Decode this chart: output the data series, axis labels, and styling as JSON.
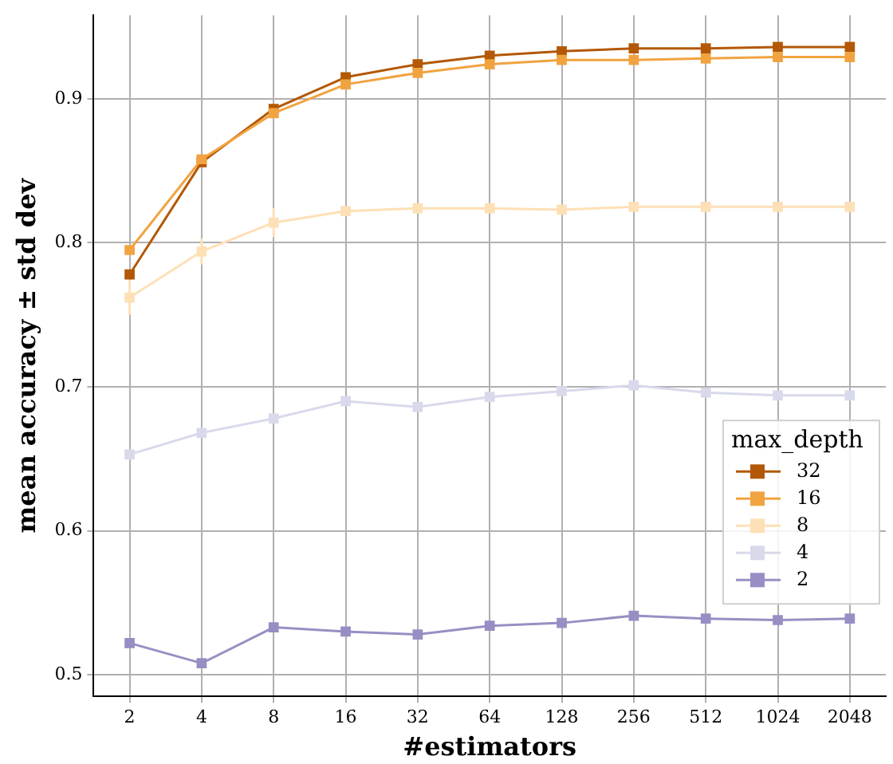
{
  "chart_data": {
    "type": "line",
    "xlabel": "#estimators",
    "ylabel": "mean accuracy ± std dev",
    "legend_title": "max_depth",
    "categories": [
      "2",
      "4",
      "8",
      "16",
      "32",
      "64",
      "128",
      "256",
      "512",
      "1024",
      "2048"
    ],
    "series": [
      {
        "name": "32",
        "color": "#b35806",
        "values": [
          0.778,
          0.856,
          0.893,
          0.915,
          0.924,
          0.93,
          0.933,
          0.935,
          0.935,
          0.936,
          0.936
        ]
      },
      {
        "name": "16",
        "color": "#f1a340",
        "values": [
          0.795,
          0.858,
          0.89,
          0.91,
          0.918,
          0.924,
          0.927,
          0.927,
          0.928,
          0.929,
          0.929
        ]
      },
      {
        "name": "8",
        "color": "#fee0b6",
        "values": [
          0.762,
          0.794,
          0.814,
          0.822,
          0.824,
          0.824,
          0.823,
          0.825,
          0.825,
          0.825,
          0.825
        ],
        "errors": [
          0.012,
          0.009,
          0.01,
          null,
          null,
          null,
          null,
          null,
          null,
          null,
          null
        ]
      },
      {
        "name": "4",
        "color": "#d8daeb",
        "values": [
          0.653,
          0.668,
          0.678,
          0.69,
          0.686,
          0.693,
          0.697,
          0.701,
          0.696,
          0.694,
          0.694
        ]
      },
      {
        "name": "2",
        "color": "#998ec3",
        "values": [
          0.522,
          0.508,
          0.533,
          0.53,
          0.528,
          0.534,
          0.536,
          0.541,
          0.539,
          0.538,
          0.539
        ]
      }
    ],
    "ylim": [
      0.485,
      0.958
    ],
    "yticks": [
      0.5,
      0.6,
      0.7,
      0.8,
      0.9
    ],
    "grid": true,
    "legend": "right",
    "marker": "square",
    "line_style": "solid"
  }
}
